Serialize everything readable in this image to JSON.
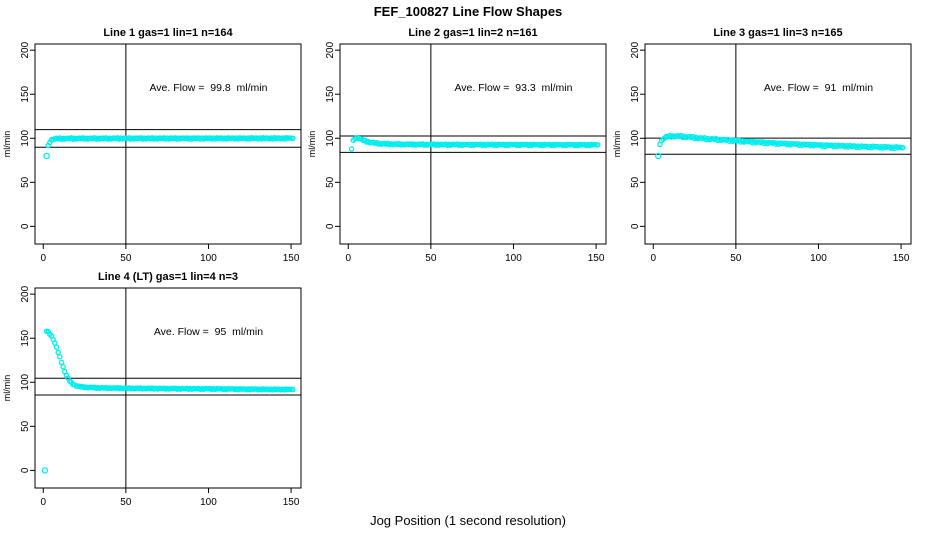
{
  "title": "FEF_100827  Line Flow Shapes",
  "xlabel": "Jog Position (1 second resolution)",
  "chart_data": {
    "type": "scatter",
    "title": "FEF_100827  Line Flow Shapes",
    "xlabel": "Jog Position (1 second resolution)",
    "ylabel": "ml/min",
    "x_ticks": [
      0,
      50,
      100,
      150
    ],
    "y_ticks": [
      0,
      50,
      100,
      150,
      200
    ],
    "xlim": [
      -5,
      156
    ],
    "ylim": [
      -20,
      207
    ],
    "vline_x": 50,
    "point_color": "#00EEEE",
    "grid": false,
    "legend": "none",
    "panels": [
      {
        "title": "Line 1 gas=1 lin=1 n=164",
        "annotation": "Ave. Flow =  99.8  ml/min",
        "avg_flow": 99.8,
        "n": 164,
        "ref_line_upper": 109.8,
        "ref_line_lower": 89.8,
        "outliers": [
          [
            2,
            80
          ]
        ],
        "keypoints": [
          [
            3,
            91
          ],
          [
            4,
            96
          ],
          [
            5,
            98
          ],
          [
            6,
            99
          ],
          [
            8,
            99.5
          ],
          [
            20,
            99.8
          ],
          [
            151,
            100
          ]
        ],
        "jitter": 0.6
      },
      {
        "title": "Line 2 gas=1 lin=2 n=161",
        "annotation": "Ave. Flow =  93.3  ml/min",
        "avg_flow": 93.3,
        "n": 161,
        "ref_line_upper": 102.6,
        "ref_line_lower": 84.0,
        "outliers": [],
        "keypoints": [
          [
            2,
            88
          ],
          [
            3,
            97
          ],
          [
            4,
            100
          ],
          [
            5,
            100.5
          ],
          [
            7,
            99.5
          ],
          [
            10,
            97
          ],
          [
            14,
            95
          ],
          [
            20,
            93.8
          ],
          [
            28,
            93.2
          ],
          [
            60,
            92.8
          ],
          [
            151,
            92.5
          ]
        ],
        "jitter": 0.6
      },
      {
        "title": "Line 3 gas=1 lin=3 n=165",
        "annotation": "Ave. Flow =  91  ml/min",
        "avg_flow": 91,
        "n": 165,
        "ref_line_upper": 100.1,
        "ref_line_lower": 81.9,
        "outliers": [
          [
            3,
            80
          ]
        ],
        "keypoints": [
          [
            4,
            94
          ],
          [
            5,
            97
          ],
          [
            6,
            99.5
          ],
          [
            8,
            101.5
          ],
          [
            11,
            102.5
          ],
          [
            16,
            102.3
          ],
          [
            22,
            101.3
          ],
          [
            30,
            99.8
          ],
          [
            45,
            97.8
          ],
          [
            65,
            95.3
          ],
          [
            85,
            93.3
          ],
          [
            105,
            91.8
          ],
          [
            125,
            90.6
          ],
          [
            151,
            89.3
          ]
        ],
        "jitter": 0.8
      },
      {
        "title": "Line 4 (LT) gas=1 lin=4 n=3",
        "annotation": "Ave. Flow =  95  ml/min",
        "avg_flow": 95,
        "n": 3,
        "ref_line_upper": 104.5,
        "ref_line_lower": 85.5,
        "outliers": [
          [
            1,
            0
          ]
        ],
        "keypoints": [
          [
            2,
            158
          ],
          [
            3,
            157
          ],
          [
            4,
            155
          ],
          [
            5,
            152.5
          ],
          [
            6,
            149
          ],
          [
            7,
            144.5
          ],
          [
            8,
            139.5
          ],
          [
            9,
            134
          ],
          [
            10,
            128.5
          ],
          [
            11,
            123
          ],
          [
            12,
            117.5
          ],
          [
            13,
            112.5
          ],
          [
            14,
            108
          ],
          [
            15,
            104.5
          ],
          [
            16,
            101.5
          ],
          [
            17,
            99.5
          ],
          [
            18,
            98
          ],
          [
            19,
            96.8
          ],
          [
            21,
            95.5
          ],
          [
            24,
            94.6
          ],
          [
            28,
            94
          ],
          [
            35,
            93.6
          ],
          [
            50,
            93.2
          ],
          [
            80,
            92.8
          ],
          [
            120,
            92.2
          ],
          [
            151,
            91.8
          ]
        ],
        "jitter": 0.45
      }
    ]
  }
}
